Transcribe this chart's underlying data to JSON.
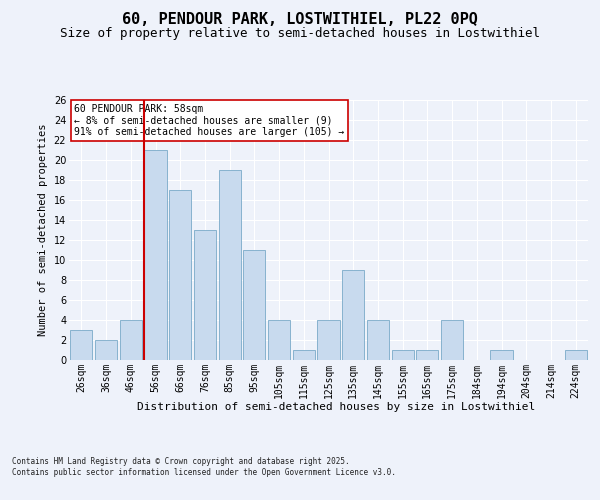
{
  "title": "60, PENDOUR PARK, LOSTWITHIEL, PL22 0PQ",
  "subtitle": "Size of property relative to semi-detached houses in Lostwithiel",
  "xlabel": "Distribution of semi-detached houses by size in Lostwithiel",
  "ylabel": "Number of semi-detached properties",
  "categories": [
    "26sqm",
    "36sqm",
    "46sqm",
    "56sqm",
    "66sqm",
    "76sqm",
    "85sqm",
    "95sqm",
    "105sqm",
    "115sqm",
    "125sqm",
    "135sqm",
    "145sqm",
    "155sqm",
    "165sqm",
    "175sqm",
    "184sqm",
    "194sqm",
    "204sqm",
    "214sqm",
    "224sqm"
  ],
  "values": [
    3,
    2,
    4,
    21,
    17,
    13,
    19,
    11,
    4,
    1,
    4,
    9,
    4,
    1,
    1,
    4,
    0,
    1,
    0,
    0,
    1
  ],
  "bar_color": "#c8daee",
  "bar_edge_color": "#7aaac8",
  "vline_index": 3,
  "vline_color": "#cc0000",
  "annotation_text": "60 PENDOUR PARK: 58sqm\n← 8% of semi-detached houses are smaller (9)\n91% of semi-detached houses are larger (105) →",
  "annotation_box_color": "#ffffff",
  "annotation_box_edge": "#cc0000",
  "footer": "Contains HM Land Registry data © Crown copyright and database right 2025.\nContains public sector information licensed under the Open Government Licence v3.0.",
  "bg_color": "#eef2fa",
  "grid_color": "#ffffff",
  "ylim": [
    0,
    26
  ],
  "yticks": [
    0,
    2,
    4,
    6,
    8,
    10,
    12,
    14,
    16,
    18,
    20,
    22,
    24,
    26
  ],
  "title_fontsize": 11,
  "subtitle_fontsize": 9,
  "xlabel_fontsize": 8,
  "ylabel_fontsize": 7.5,
  "tick_fontsize": 7,
  "annot_fontsize": 7,
  "footer_fontsize": 5.5
}
